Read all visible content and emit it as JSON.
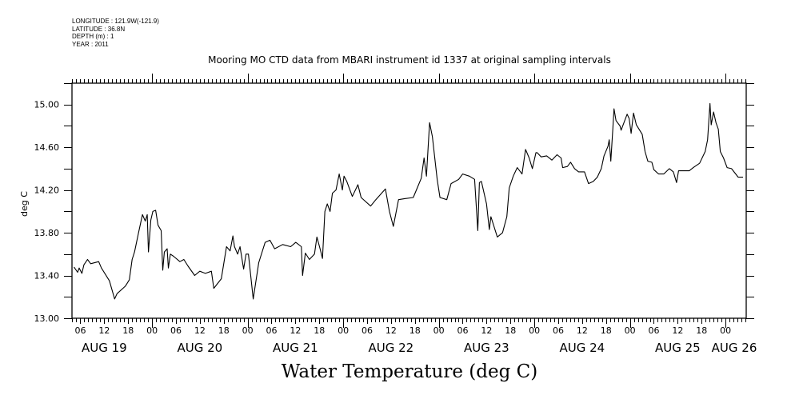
{
  "header": {
    "longitude": "LONGITUDE : 121.9W(-121.9)",
    "latitude": "LATITUDE : 36.8N",
    "depth": "DEPTH (m) : 1",
    "year": "YEAR : 2011"
  },
  "chart_data": {
    "type": "line",
    "title": "Mooring MO CTD data from MBARI instrument id 1337 at original sampling intervals",
    "xlabel": "Water Temperature (deg C)",
    "ylabel": "deg C",
    "x_units": "hours since AUG 19 00:00 (2011)",
    "xlim": [
      3.9,
      173.2
    ],
    "ylim": [
      13.0,
      15.2
    ],
    "yticks": [
      13.0,
      13.4,
      13.8,
      14.2,
      14.6,
      15.0
    ],
    "ytick_labels": [
      "13.00",
      "13.40",
      "13.80",
      "14.20",
      "14.60",
      "15.00"
    ],
    "xtick_hours": [
      6,
      12,
      18,
      24,
      30,
      36,
      42,
      48,
      54,
      60,
      66,
      72,
      78,
      84,
      90,
      96,
      102,
      108,
      114,
      120,
      126,
      132,
      138,
      144,
      150,
      156,
      162,
      168
    ],
    "xtick_labels": [
      "06",
      "12",
      "18",
      "00",
      "06",
      "12",
      "18",
      "00",
      "06",
      "12",
      "18",
      "00",
      "06",
      "12",
      "18",
      "00",
      "06",
      "12",
      "18",
      "00",
      "06",
      "12",
      "18",
      "00",
      "06",
      "12",
      "18",
      "00"
    ],
    "date_labels": [
      {
        "label": "AUG 19",
        "hour": 12
      },
      {
        "label": "AUG 20",
        "hour": 36
      },
      {
        "label": "AUG 21",
        "hour": 60
      },
      {
        "label": "AUG 22",
        "hour": 84
      },
      {
        "label": "AUG 23",
        "hour": 108
      },
      {
        "label": "AUG 24",
        "hour": 132
      },
      {
        "label": "AUG 25",
        "hour": 156
      },
      {
        "label": "AUG 26",
        "hour": 180
      }
    ],
    "grid": false,
    "series": [
      {
        "name": "Water Temperature",
        "points": [
          [
            4.4,
            13.48
          ],
          [
            5.3,
            13.43
          ],
          [
            5.7,
            13.47
          ],
          [
            6.4,
            13.42
          ],
          [
            6.9,
            13.5
          ],
          [
            7.8,
            13.55
          ],
          [
            8.6,
            13.51
          ],
          [
            10.6,
            13.53
          ],
          [
            11.3,
            13.47
          ],
          [
            13.3,
            13.35
          ],
          [
            14.6,
            13.18
          ],
          [
            15.2,
            13.23
          ],
          [
            17.3,
            13.3
          ],
          [
            18.3,
            13.36
          ],
          [
            19,
            13.55
          ],
          [
            19.6,
            13.62
          ],
          [
            20.6,
            13.8
          ],
          [
            21.6,
            13.97
          ],
          [
            22.3,
            13.91
          ],
          [
            22.8,
            13.97
          ],
          [
            23.1,
            13.62
          ],
          [
            23.7,
            13.92
          ],
          [
            24.2,
            14.0
          ],
          [
            24.9,
            14.01
          ],
          [
            25.5,
            13.87
          ],
          [
            26.3,
            13.82
          ],
          [
            26.7,
            13.45
          ],
          [
            27.1,
            13.62
          ],
          [
            27.8,
            13.65
          ],
          [
            28.1,
            13.47
          ],
          [
            28.6,
            13.6
          ],
          [
            29.4,
            13.58
          ],
          [
            31,
            13.53
          ],
          [
            32,
            13.55
          ],
          [
            33,
            13.49
          ],
          [
            34.7,
            13.4
          ],
          [
            36,
            13.44
          ],
          [
            37.4,
            13.42
          ],
          [
            38.9,
            13.44
          ],
          [
            39.5,
            13.28
          ],
          [
            41.4,
            13.37
          ],
          [
            42.7,
            13.67
          ],
          [
            43.6,
            13.63
          ],
          [
            44.3,
            13.77
          ],
          [
            44.7,
            13.67
          ],
          [
            45.5,
            13.6
          ],
          [
            46.1,
            13.67
          ],
          [
            47,
            13.46
          ],
          [
            47.6,
            13.6
          ],
          [
            48.2,
            13.6
          ],
          [
            49.4,
            13.18
          ],
          [
            50.8,
            13.52
          ],
          [
            52.4,
            13.71
          ],
          [
            53.6,
            13.73
          ],
          [
            54.8,
            13.65
          ],
          [
            56.8,
            13.69
          ],
          [
            58.8,
            13.67
          ],
          [
            60.1,
            13.71
          ],
          [
            61.5,
            13.67
          ],
          [
            61.8,
            13.4
          ],
          [
            62.5,
            13.61
          ],
          [
            63.5,
            13.55
          ],
          [
            64.8,
            13.6
          ],
          [
            65.4,
            13.76
          ],
          [
            66.2,
            13.65
          ],
          [
            66.8,
            13.56
          ],
          [
            67.4,
            14.0
          ],
          [
            68,
            14.07
          ],
          [
            68.7,
            14.0
          ],
          [
            69.3,
            14.17
          ],
          [
            70.2,
            14.2
          ],
          [
            71,
            14.35
          ],
          [
            71.8,
            14.2
          ],
          [
            72.2,
            14.33
          ],
          [
            72.9,
            14.28
          ],
          [
            74.3,
            14.14
          ],
          [
            75.7,
            14.25
          ],
          [
            76.5,
            14.13
          ],
          [
            78.9,
            14.05
          ],
          [
            80.2,
            14.11
          ],
          [
            82.6,
            14.21
          ],
          [
            83.6,
            14.0
          ],
          [
            84.6,
            13.86
          ],
          [
            85.9,
            14.11
          ],
          [
            87.6,
            14.12
          ],
          [
            89.6,
            14.13
          ],
          [
            90.6,
            14.22
          ],
          [
            91.6,
            14.31
          ],
          [
            92.3,
            14.5
          ],
          [
            92.9,
            14.33
          ],
          [
            93.7,
            14.83
          ],
          [
            94.4,
            14.7
          ],
          [
            95.6,
            14.3
          ],
          [
            96.3,
            14.13
          ],
          [
            98,
            14.11
          ],
          [
            99.1,
            14.26
          ],
          [
            101,
            14.3
          ],
          [
            102,
            14.35
          ],
          [
            103.7,
            14.33
          ],
          [
            105,
            14.3
          ],
          [
            105.8,
            13.82
          ],
          [
            106.2,
            14.27
          ],
          [
            106.7,
            14.28
          ],
          [
            108,
            14.07
          ],
          [
            108.7,
            13.83
          ],
          [
            109.1,
            13.95
          ],
          [
            110.7,
            13.76
          ],
          [
            112,
            13.8
          ],
          [
            113.1,
            13.95
          ],
          [
            113.7,
            14.22
          ],
          [
            114.7,
            14.33
          ],
          [
            115.7,
            14.41
          ],
          [
            116.9,
            14.35
          ],
          [
            117.8,
            14.58
          ],
          [
            118.7,
            14.5
          ],
          [
            119.5,
            14.4
          ],
          [
            120.4,
            14.55
          ],
          [
            120.7,
            14.55
          ],
          [
            121.7,
            14.51
          ],
          [
            123.1,
            14.52
          ],
          [
            124.4,
            14.48
          ],
          [
            125.7,
            14.53
          ],
          [
            126.7,
            14.5
          ],
          [
            127.1,
            14.41
          ],
          [
            128.3,
            14.42
          ],
          [
            129.1,
            14.46
          ],
          [
            130.1,
            14.4
          ],
          [
            131.1,
            14.37
          ],
          [
            132.6,
            14.37
          ],
          [
            133.6,
            14.26
          ],
          [
            134.8,
            14.28
          ],
          [
            135.8,
            14.32
          ],
          [
            136.8,
            14.4
          ],
          [
            137.5,
            14.52
          ],
          [
            138.5,
            14.61
          ],
          [
            138.8,
            14.67
          ],
          [
            139.2,
            14.47
          ],
          [
            139.7,
            14.77
          ],
          [
            140,
            14.96
          ],
          [
            140.5,
            14.85
          ],
          [
            141.5,
            14.8
          ],
          [
            141.8,
            14.76
          ],
          [
            143.3,
            14.91
          ],
          [
            143.8,
            14.87
          ],
          [
            144.3,
            14.73
          ],
          [
            144.9,
            14.92
          ],
          [
            145.6,
            14.81
          ],
          [
            147.1,
            14.72
          ],
          [
            147.8,
            14.56
          ],
          [
            148.5,
            14.47
          ],
          [
            149.5,
            14.46
          ],
          [
            150,
            14.39
          ],
          [
            151.2,
            14.35
          ],
          [
            152.5,
            14.35
          ],
          [
            153.9,
            14.4
          ],
          [
            154.9,
            14.37
          ],
          [
            155.7,
            14.27
          ],
          [
            156.2,
            14.38
          ],
          [
            158.9,
            14.38
          ],
          [
            159.9,
            14.41
          ],
          [
            161.5,
            14.45
          ],
          [
            162.9,
            14.56
          ],
          [
            163.5,
            14.67
          ],
          [
            164.1,
            15.01
          ],
          [
            164.4,
            14.81
          ],
          [
            165,
            14.93
          ],
          [
            165.6,
            14.83
          ],
          [
            166.2,
            14.77
          ],
          [
            166.7,
            14.56
          ],
          [
            167.5,
            14.5
          ],
          [
            168.4,
            14.41
          ],
          [
            169.5,
            14.4
          ],
          [
            171.2,
            14.32
          ],
          [
            172.4,
            14.32
          ]
        ]
      }
    ],
    "line_color": "#000000"
  }
}
